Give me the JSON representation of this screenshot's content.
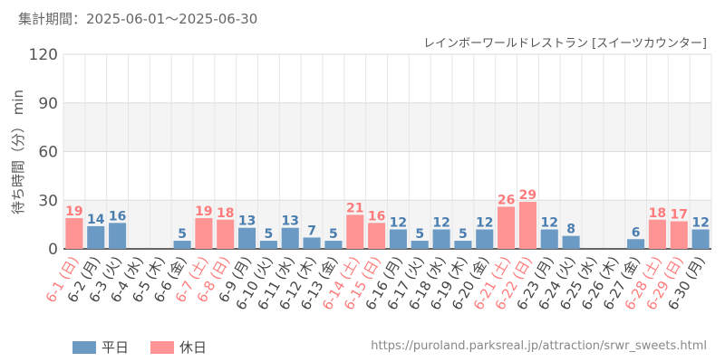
{
  "period_text": "集計期間：2025-06-01～2025-06-30",
  "source_url": "https://puroland.parksreal.jp/attraction/srwr_sweets.html",
  "colors": {
    "weekday": "#6b9ac4",
    "holiday": "#ff9494",
    "holiday_label": "#ff7b7b",
    "weekday_label": "#4a7eb0"
  },
  "chart_data": {
    "type": "bar",
    "title": "レインボーワールドレストラン [スイーツカウンター]",
    "ylabel": "待ち時間（分） min",
    "ylim": [
      0,
      120
    ],
    "yticks": [
      0,
      30,
      60,
      90,
      120
    ],
    "grid": true,
    "legend_position": "bottom-left",
    "categories": [
      "6-1 (日)",
      "6-2 (月)",
      "6-3 (火)",
      "6-4 (水)",
      "6-5 (木)",
      "6-6 (金)",
      "6-7 (土)",
      "6-8 (日)",
      "6-9 (月)",
      "6-10 (火)",
      "6-11 (水)",
      "6-12 (木)",
      "6-13 (金)",
      "6-14 (土)",
      "6-15 (日)",
      "6-16 (月)",
      "6-17 (火)",
      "6-18 (水)",
      "6-19 (木)",
      "6-20 (金)",
      "6-21 (土)",
      "6-22 (日)",
      "6-23 (月)",
      "6-24 (火)",
      "6-25 (水)",
      "6-26 (木)",
      "6-27 (金)",
      "6-28 (土)",
      "6-29 (日)",
      "6-30 (月)"
    ],
    "values": [
      19,
      14,
      16,
      null,
      null,
      5,
      19,
      18,
      13,
      5,
      13,
      7,
      5,
      21,
      16,
      12,
      5,
      12,
      5,
      12,
      26,
      29,
      12,
      8,
      null,
      null,
      6,
      18,
      17,
      12
    ],
    "day_type": [
      "holiday",
      "weekday",
      "weekday",
      "weekday",
      "weekday",
      "weekday",
      "holiday",
      "holiday",
      "weekday",
      "weekday",
      "weekday",
      "weekday",
      "weekday",
      "holiday",
      "holiday",
      "weekday",
      "weekday",
      "weekday",
      "weekday",
      "weekday",
      "holiday",
      "holiday",
      "weekday",
      "weekday",
      "weekday",
      "weekday",
      "weekday",
      "holiday",
      "holiday",
      "weekday"
    ],
    "legend": [
      {
        "label": "平日",
        "key": "weekday"
      },
      {
        "label": "休日",
        "key": "holiday"
      }
    ]
  }
}
